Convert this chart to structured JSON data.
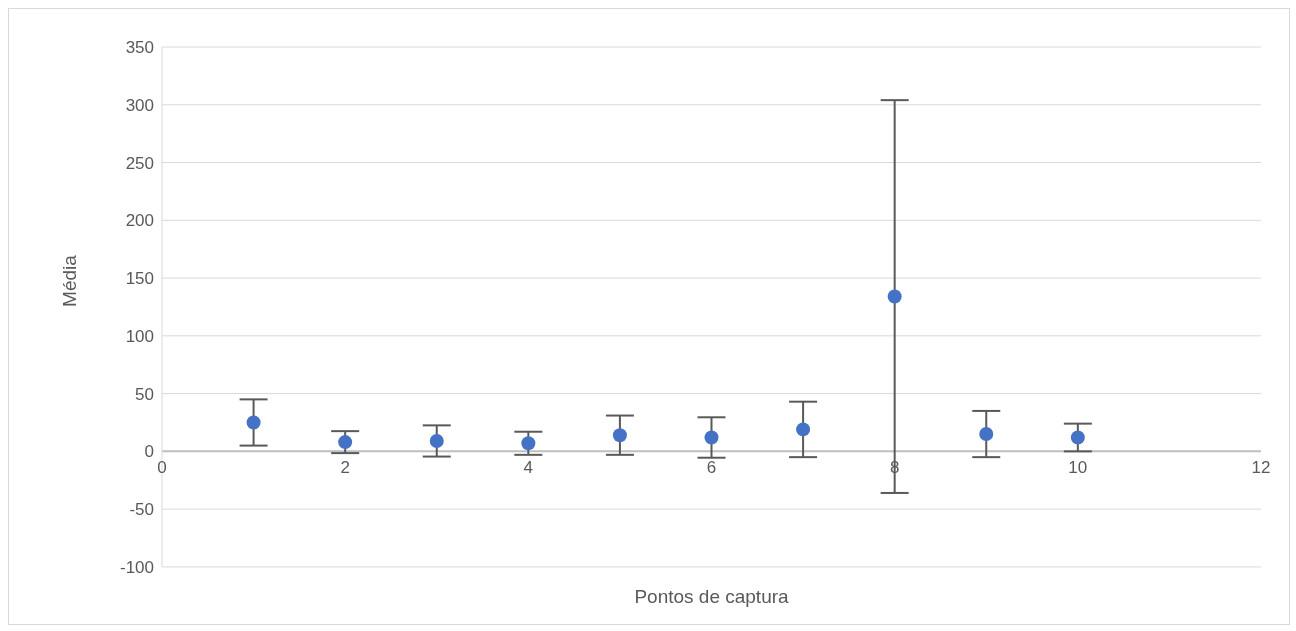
{
  "chart_data": {
    "type": "scatter",
    "xlabel": "Pontos de captura",
    "ylabel": "Média",
    "x": [
      1,
      2,
      3,
      4,
      5,
      6,
      7,
      8,
      9,
      10
    ],
    "series": [
      {
        "color": "#4472c4",
        "values": [
          25,
          8,
          9,
          7,
          14,
          12,
          19,
          134,
          15,
          12
        ],
        "errors": [
          20,
          9.5,
          13.5,
          10,
          17,
          17.5,
          24,
          170,
          20,
          12
        ]
      }
    ],
    "xlim": [
      0,
      12
    ],
    "xticks": [
      0,
      2,
      4,
      6,
      8,
      10,
      12
    ],
    "ylim": [
      -100,
      350
    ],
    "yticks": [
      -100,
      -50,
      0,
      50,
      100,
      150,
      200,
      250,
      300,
      350
    ],
    "grid": "y",
    "marker": "circle"
  }
}
